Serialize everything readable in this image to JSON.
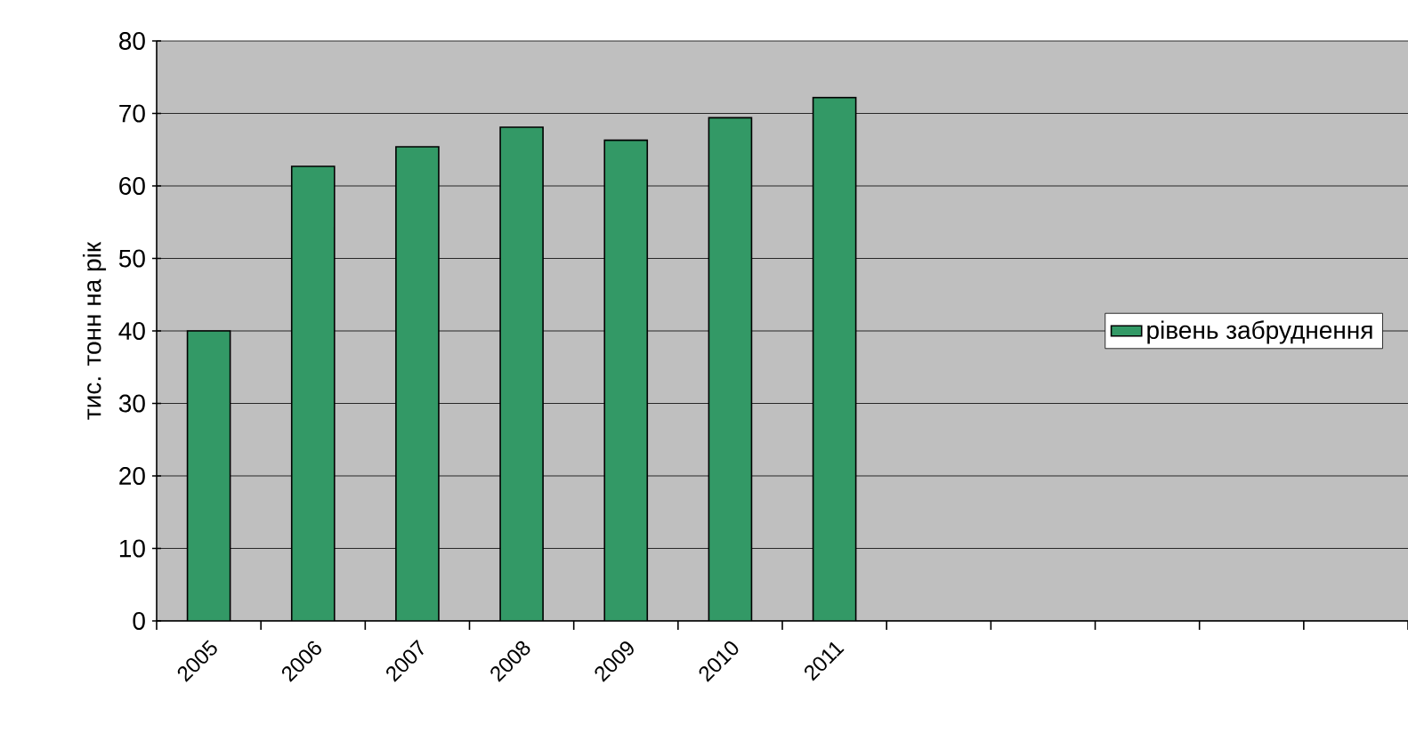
{
  "chart_data": {
    "type": "bar",
    "ylabel": "тис. тонн на рік",
    "categories": [
      "2005",
      "2006",
      "2007",
      "2008",
      "2009",
      "2010",
      "2011",
      null,
      null,
      null,
      null,
      null
    ],
    "series": [
      {
        "name": "рівень забруднення",
        "color": "#339966",
        "values": [
          40,
          62.7,
          65.4,
          68.1,
          66.3,
          69.4,
          72.2,
          null,
          null,
          null,
          null,
          null
        ]
      }
    ],
    "ylim": [
      0,
      80
    ],
    "yticks": [
      0,
      10,
      20,
      30,
      40,
      50,
      60,
      70,
      80
    ],
    "grid": "y",
    "legend": "right"
  }
}
